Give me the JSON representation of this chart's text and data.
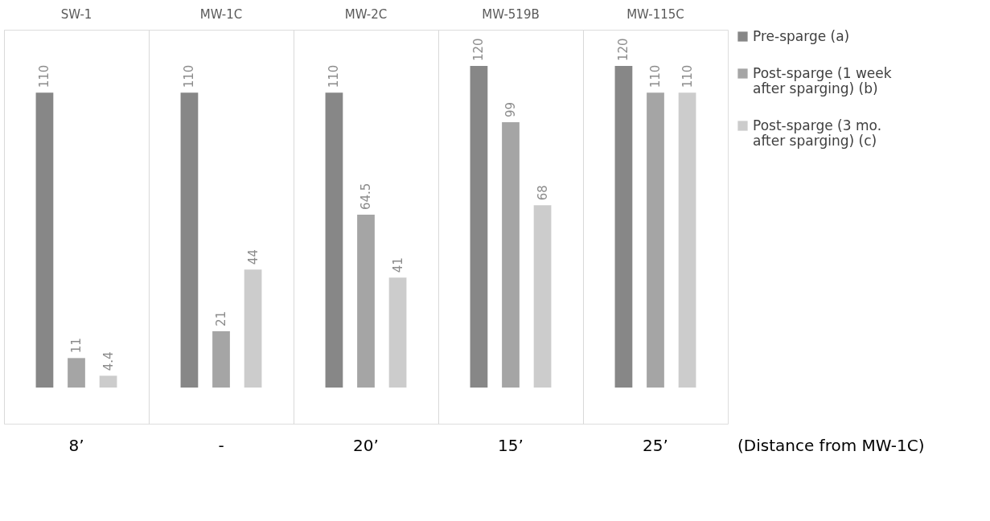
{
  "chart_data": {
    "type": "bar",
    "categories": [
      "SW-1",
      "MW-1C",
      "MW-2C",
      "MW-519B",
      "MW-115C"
    ],
    "series": [
      {
        "name": "Pre-sparge (a)",
        "color": "#878787",
        "values": [
          110,
          110,
          110,
          120,
          120
        ]
      },
      {
        "name": "Post-sparge (1 week after sparging) (b)",
        "color": "#a5a5a5",
        "values": [
          11,
          21,
          64.5,
          99,
          110
        ]
      },
      {
        "name": "Post-sparge (3 mo. after sparging) (c)",
        "color": "#cccccc",
        "values": [
          4.4,
          44,
          41,
          68,
          110
        ]
      }
    ],
    "xlabel": "(Distance from MW-1C)",
    "annotations": [
      "8’",
      "-",
      "20’",
      "15’",
      "25’"
    ],
    "data_labels": true,
    "grid": "x",
    "legend": "right",
    "tick_labels": "x"
  }
}
